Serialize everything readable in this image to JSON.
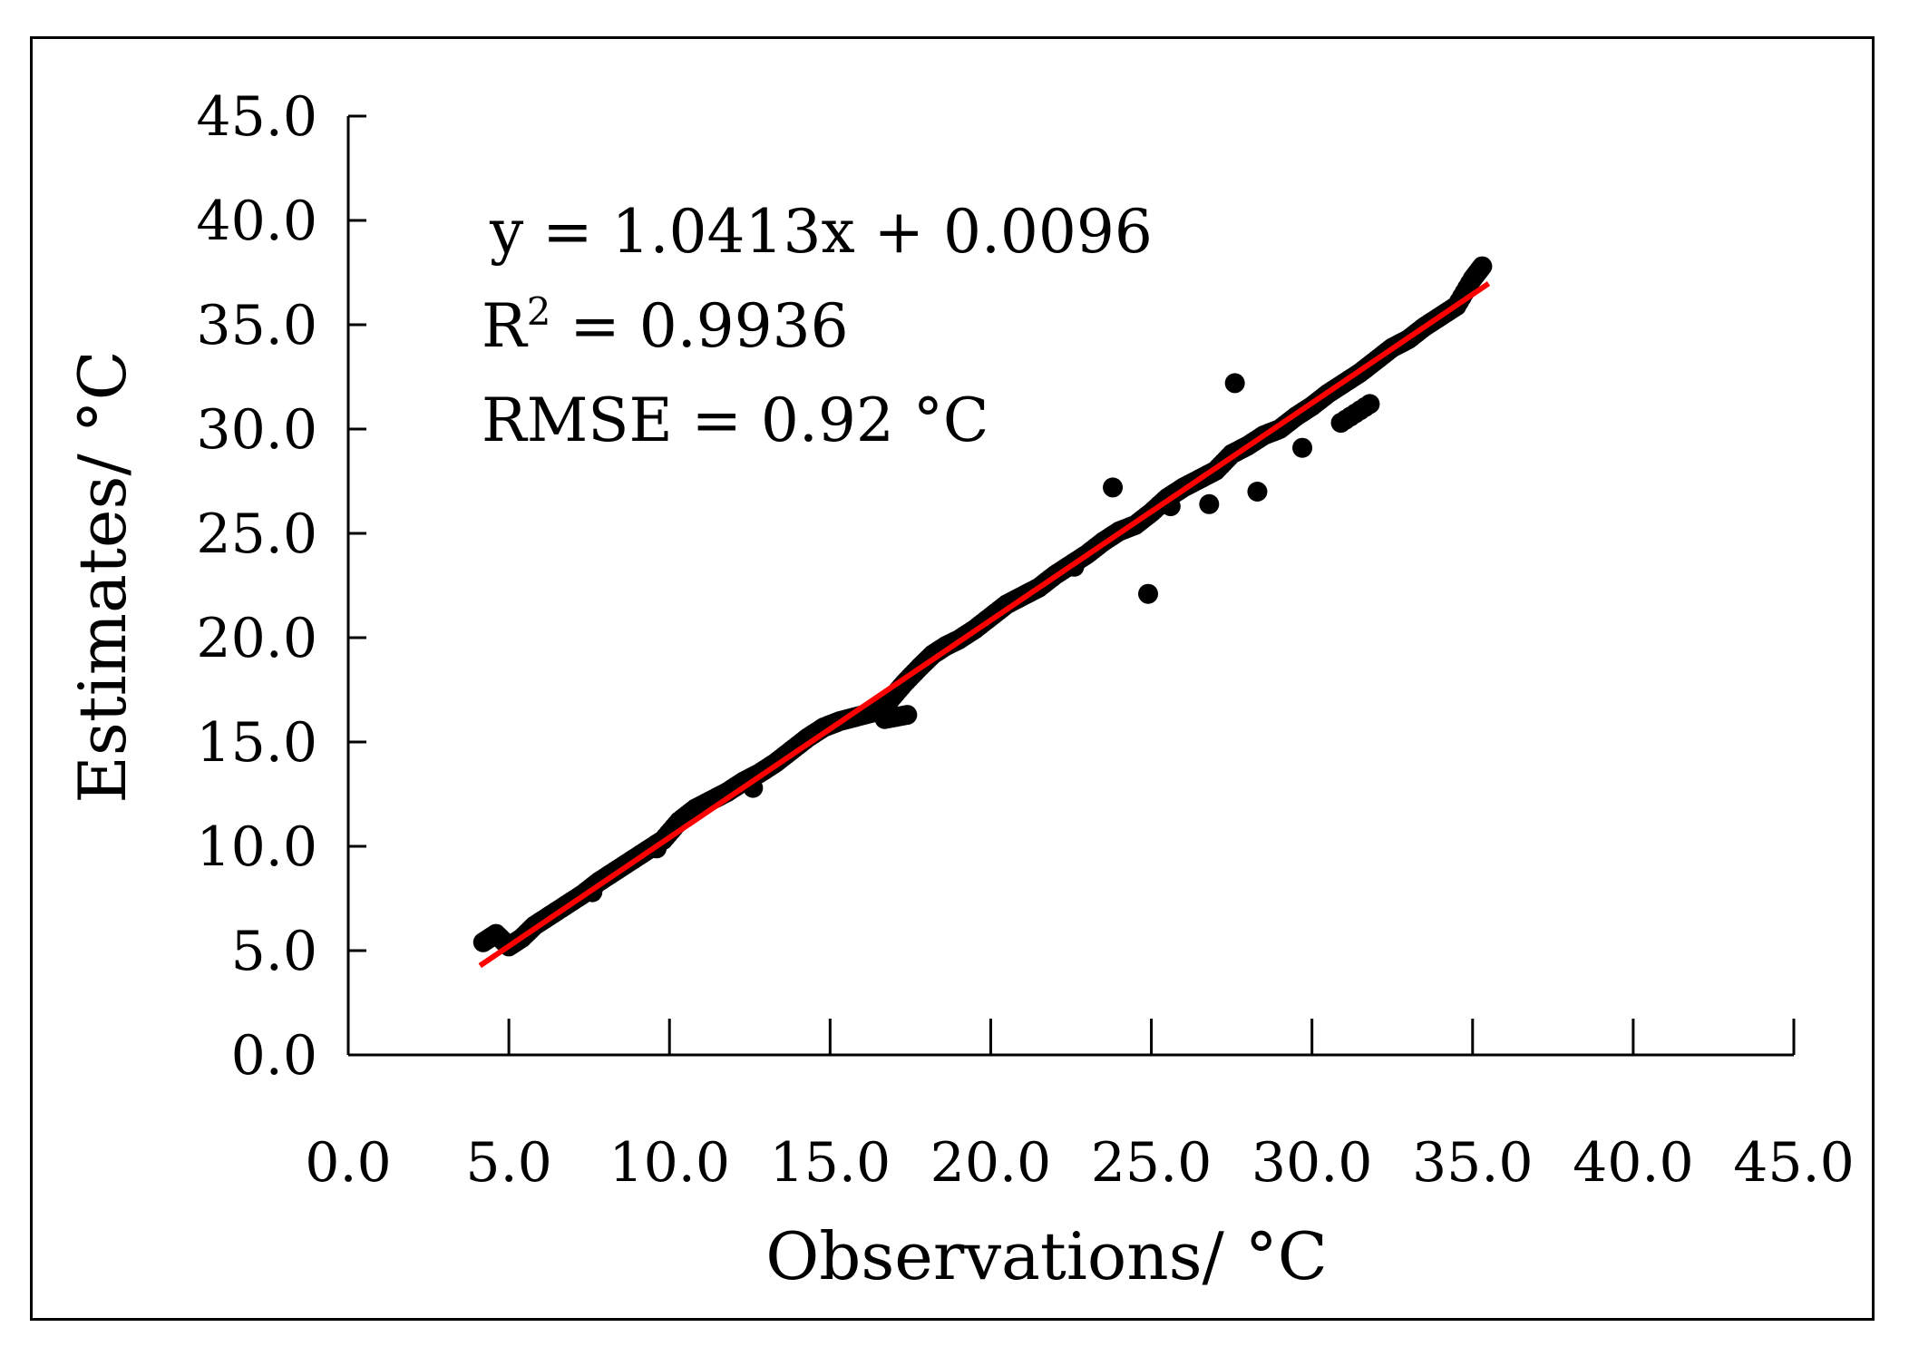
{
  "chart_data": {
    "type": "scatter",
    "title": "",
    "xlabel": "Observations/ °C",
    "ylabel": "Estimates/ °C",
    "xlim": [
      0,
      45
    ],
    "ylim": [
      0,
      45
    ],
    "x_ticks": [
      0,
      5,
      10,
      15,
      20,
      25,
      30,
      35,
      40,
      45
    ],
    "y_ticks": [
      0,
      5,
      10,
      15,
      20,
      25,
      30,
      35,
      40,
      45
    ],
    "x_tick_labels": [
      "0.0",
      "5.0",
      "10.0",
      "15.0",
      "20.0",
      "25.0",
      "30.0",
      "35.0",
      "40.0",
      "45.0"
    ],
    "y_tick_labels": [
      "0.0",
      "5.0",
      "10.0",
      "15.0",
      "20.0",
      "25.0",
      "30.0",
      "35.0",
      "40.0",
      "45.0"
    ],
    "grid": false,
    "legend": "none",
    "marker_color": "#000000",
    "fit_line_color": "#ff0000",
    "fit": {
      "slope": 1.0413,
      "intercept": 0.0096,
      "x_range": [
        4.1,
        35.5
      ]
    },
    "annotations": {
      "equation": "y = 1.0413x + 0.0096",
      "r2_prefix": "R",
      "r2_sup": "2",
      "r2_value": " = 0.9936",
      "rmse": "RMSE = 0.92 °C"
    },
    "series": [
      {
        "x": [
          4.2,
          4.6,
          5.0,
          5.4,
          5.8,
          6.3,
          6.8,
          7.3,
          7.8,
          8.3,
          8.8,
          9.3,
          9.8,
          10.3,
          10.8,
          11.3,
          11.8,
          12.3,
          12.8,
          13.3,
          13.8,
          14.3,
          14.8,
          15.3,
          15.8,
          16.3,
          16.8,
          17.3,
          17.8,
          18.2,
          18.6,
          19.0,
          19.5,
          20.0,
          20.5,
          21.0,
          21.5,
          22.0,
          22.5,
          23.0,
          23.5,
          24.0,
          24.5,
          25.0,
          25.5,
          26.0,
          26.5,
          27.0,
          27.5,
          28.0,
          28.5,
          29.0,
          29.5,
          30.0,
          30.5,
          31.0,
          31.5,
          32.0,
          32.5,
          33.0,
          33.5,
          34.0,
          34.5,
          35.0,
          35.3,
          24.9,
          27.6,
          29.7,
          23.8,
          25.6,
          28.3,
          30.9,
          31.8,
          26.8,
          22.6,
          16.7,
          17.4,
          12.6,
          9.6,
          7.6
        ],
        "y": [
          5.4,
          5.8,
          5.2,
          5.6,
          6.2,
          6.7,
          7.2,
          7.7,
          8.3,
          8.8,
          9.3,
          9.8,
          10.3,
          11.2,
          11.8,
          12.2,
          12.6,
          13.1,
          13.5,
          14.0,
          14.6,
          15.2,
          15.7,
          16.0,
          16.2,
          16.4,
          16.9,
          17.8,
          18.6,
          19.2,
          19.6,
          19.9,
          20.4,
          21.0,
          21.6,
          22.0,
          22.4,
          23.0,
          23.5,
          24.0,
          24.6,
          25.1,
          25.4,
          26.0,
          26.7,
          27.2,
          27.6,
          28.0,
          28.8,
          29.2,
          29.7,
          30.0,
          30.6,
          31.1,
          31.7,
          32.2,
          32.7,
          33.3,
          33.9,
          34.3,
          34.9,
          35.4,
          35.9,
          37.2,
          37.8,
          22.1,
          32.2,
          29.1,
          27.2,
          26.3,
          27.0,
          30.3,
          31.2,
          26.4,
          23.4,
          16.1,
          16.3,
          12.8,
          9.9,
          7.8
        ]
      }
    ]
  }
}
